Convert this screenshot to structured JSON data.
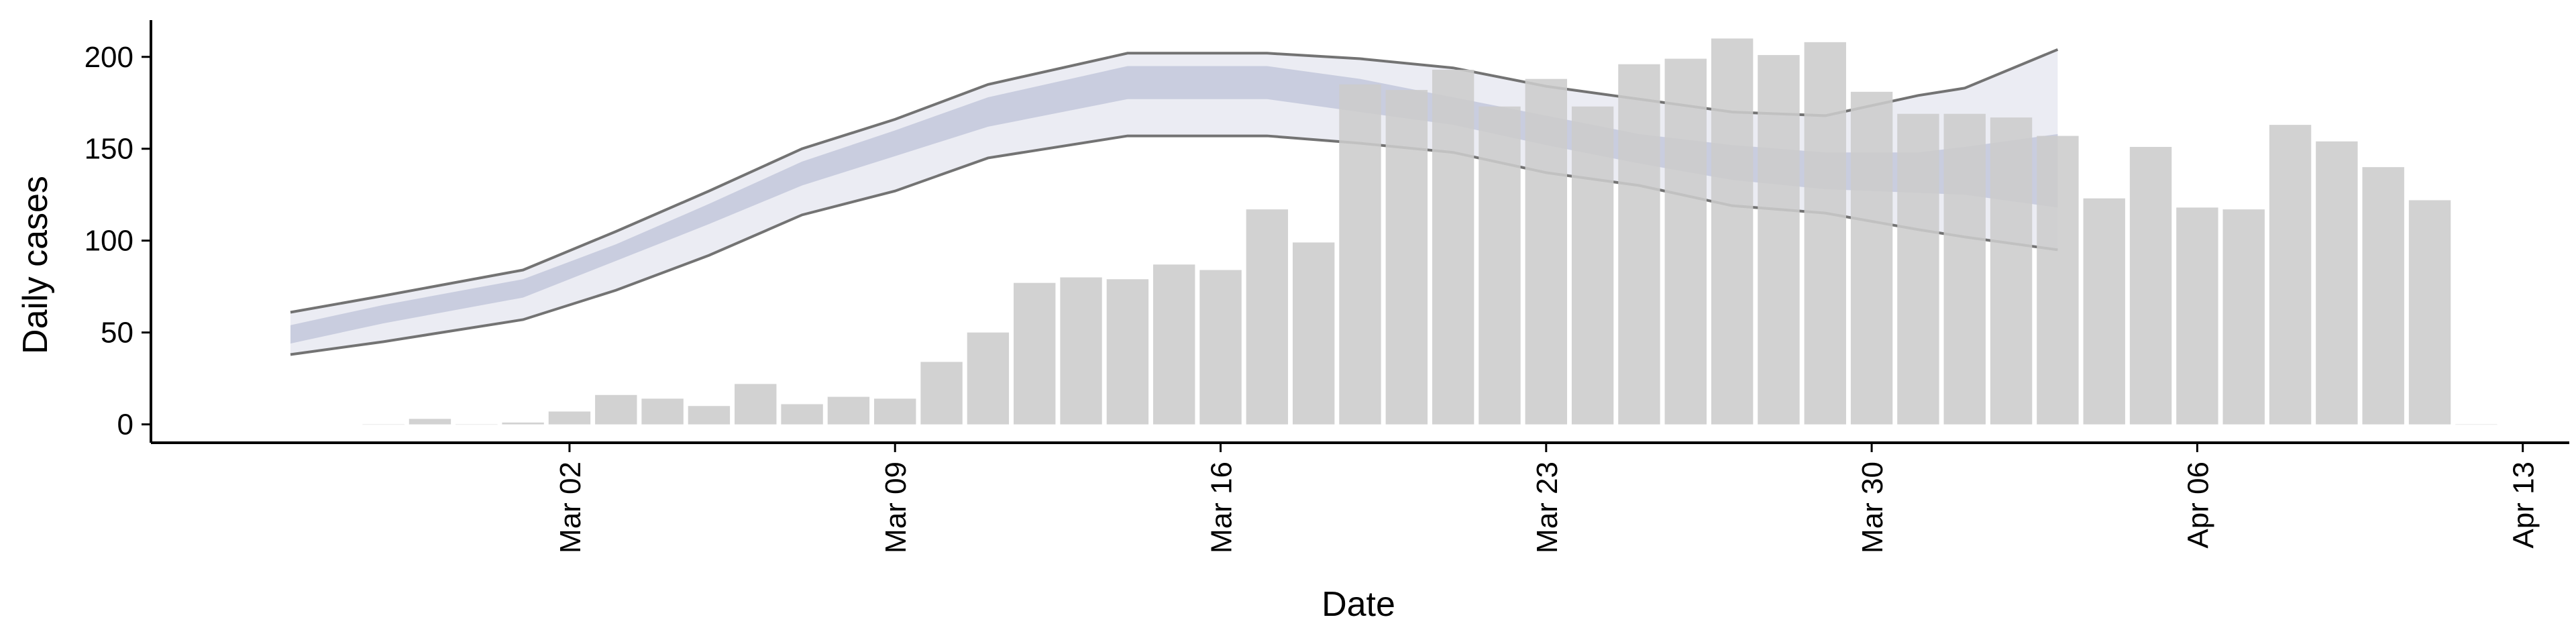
{
  "chart_data": {
    "type": "bar",
    "xlabel": "Date",
    "ylabel": "Daily cases",
    "ylim": [
      -10,
      220
    ],
    "yticks": [
      0,
      50,
      100,
      150,
      200
    ],
    "xlim": [
      "2020-02-22",
      "2020-04-14"
    ],
    "xticks": [
      {
        "date": "2020-03-02",
        "label": "Mar 02"
      },
      {
        "date": "2020-03-09",
        "label": "Mar 09"
      },
      {
        "date": "2020-03-16",
        "label": "Mar 16"
      },
      {
        "date": "2020-03-23",
        "label": "Mar 23"
      },
      {
        "date": "2020-03-30",
        "label": "Mar 30"
      },
      {
        "date": "2020-04-06",
        "label": "Apr 06"
      },
      {
        "date": "2020-04-13",
        "label": "Apr 13"
      }
    ],
    "grid": false,
    "legend": "none",
    "colors": {
      "bars": "#cccccc",
      "outer_band": "#e8e9f1",
      "inner_band": "#c5cadd",
      "band_lines": "#737373",
      "axis": "#000000"
    },
    "series": [
      {
        "kind": "bar",
        "x": [
          "2020-02-27",
          "2020-02-28",
          "2020-02-29",
          "2020-03-01",
          "2020-03-02",
          "2020-03-03",
          "2020-03-04",
          "2020-03-05",
          "2020-03-06",
          "2020-03-07",
          "2020-03-08",
          "2020-03-09",
          "2020-03-10",
          "2020-03-11",
          "2020-03-12",
          "2020-03-13",
          "2020-03-14",
          "2020-03-15",
          "2020-03-16",
          "2020-03-17",
          "2020-03-18",
          "2020-03-19",
          "2020-03-20",
          "2020-03-21",
          "2020-03-22",
          "2020-03-23",
          "2020-03-24",
          "2020-03-25",
          "2020-03-26",
          "2020-03-27",
          "2020-03-28",
          "2020-03-29",
          "2020-03-30",
          "2020-03-31",
          "2020-04-01",
          "2020-04-02",
          "2020-04-03",
          "2020-04-04",
          "2020-04-05",
          "2020-04-06",
          "2020-04-07",
          "2020-04-08",
          "2020-04-09",
          "2020-04-10",
          "2020-04-11",
          "2020-04-12"
        ],
        "values": [
          0,
          3,
          0,
          1,
          7,
          16,
          14,
          10,
          22,
          11,
          15,
          14,
          34,
          50,
          77,
          80,
          79,
          87,
          84,
          117,
          99,
          185,
          182,
          193,
          173,
          188,
          173,
          196,
          199,
          210,
          201,
          208,
          181,
          169,
          169,
          167,
          157,
          123,
          151,
          118,
          117,
          163,
          154,
          140,
          122,
          0
        ]
      },
      {
        "kind": "band",
        "x": [
          "2020-02-25",
          "2020-02-27",
          "2020-03-01",
          "2020-03-03",
          "2020-03-05",
          "2020-03-07",
          "2020-03-09",
          "2020-03-11",
          "2020-03-14",
          "2020-03-17",
          "2020-03-19",
          "2020-03-21",
          "2020-03-23",
          "2020-03-25",
          "2020-03-27",
          "2020-03-29",
          "2020-03-31",
          "2020-04-01",
          "2020-04-03"
        ],
        "lower95": [
          38,
          45,
          57,
          73,
          92,
          114,
          127,
          145,
          157,
          157,
          153,
          148,
          137,
          130,
          119,
          115,
          106,
          102,
          95
        ],
        "upper95": [
          61,
          70,
          84,
          105,
          127,
          150,
          166,
          185,
          202,
          202,
          199,
          194,
          184,
          177,
          170,
          168,
          179,
          183,
          204
        ],
        "lower50": [
          44,
          55,
          69,
          89,
          109,
          130,
          146,
          162,
          177,
          177,
          170,
          163,
          152,
          142,
          133,
          128,
          126,
          125,
          118
        ],
        "upper50": [
          54,
          65,
          79,
          98,
          120,
          143,
          160,
          178,
          195,
          195,
          188,
          178,
          168,
          158,
          152,
          148,
          148,
          151,
          158
        ]
      }
    ]
  }
}
